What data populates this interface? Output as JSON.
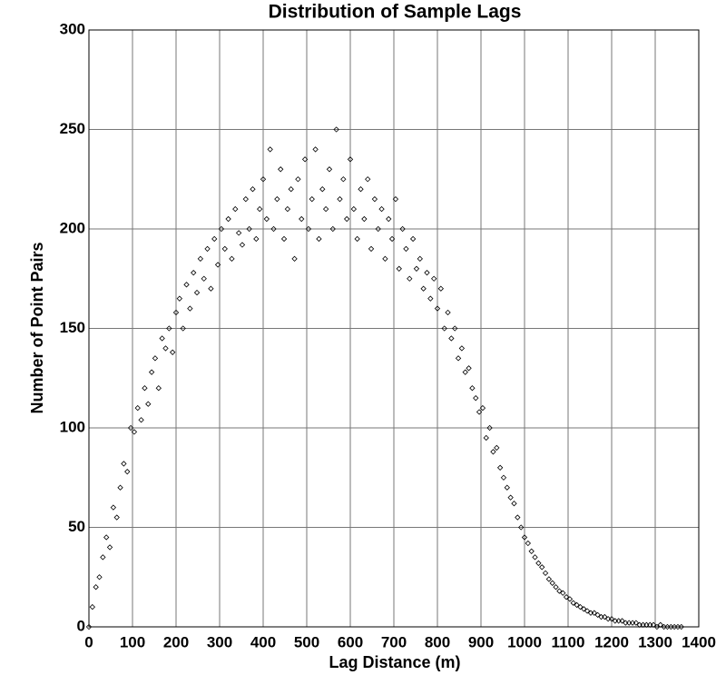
{
  "chart_data": {
    "type": "scatter",
    "title": "Distribution of Sample Lags",
    "xlabel": "Lag Distance (m)",
    "ylabel": "Number of Point Pairs",
    "marker_color": "#000000",
    "grid": true,
    "xlim": [
      0,
      1400
    ],
    "ylim": [
      0,
      300
    ],
    "xticks": [
      0,
      100,
      200,
      300,
      400,
      500,
      600,
      700,
      800,
      900,
      1000,
      1100,
      1200,
      1300,
      1400
    ],
    "yticks": [
      0,
      50,
      100,
      150,
      200,
      250,
      300
    ],
    "x": [
      0,
      8,
      16,
      24,
      32,
      40,
      48,
      56,
      64,
      72,
      80,
      88,
      96,
      104,
      112,
      120,
      128,
      136,
      144,
      152,
      160,
      168,
      176,
      184,
      192,
      200,
      208,
      216,
      224,
      232,
      240,
      248,
      256,
      264,
      272,
      280,
      288,
      296,
      304,
      312,
      320,
      328,
      336,
      344,
      352,
      360,
      368,
      376,
      384,
      392,
      400,
      408,
      416,
      424,
      432,
      440,
      448,
      456,
      464,
      472,
      480,
      488,
      496,
      504,
      512,
      520,
      528,
      536,
      544,
      552,
      560,
      568,
      576,
      584,
      592,
      600,
      608,
      616,
      624,
      632,
      640,
      648,
      656,
      664,
      672,
      680,
      688,
      696,
      704,
      712,
      720,
      728,
      736,
      744,
      752,
      760,
      768,
      776,
      784,
      792,
      800,
      808,
      816,
      824,
      832,
      840,
      848,
      856,
      864,
      872,
      880,
      888,
      896,
      904,
      912,
      920,
      928,
      936,
      944,
      952,
      960,
      968,
      976,
      984,
      992,
      1000,
      1008,
      1016,
      1024,
      1032,
      1040,
      1048,
      1056,
      1064,
      1072,
      1080,
      1088,
      1096,
      1104,
      1112,
      1120,
      1128,
      1136,
      1144,
      1152,
      1160,
      1168,
      1176,
      1184,
      1192,
      1200,
      1208,
      1216,
      1224,
      1232,
      1240,
      1248,
      1256,
      1264,
      1272,
      1280,
      1288,
      1296,
      1304,
      1312,
      1320,
      1328,
      1336,
      1344,
      1352,
      1360
    ],
    "values": [
      0,
      10,
      20,
      25,
      35,
      45,
      40,
      60,
      55,
      70,
      82,
      78,
      100,
      98,
      110,
      104,
      120,
      112,
      128,
      135,
      120,
      145,
      140,
      150,
      138,
      158,
      165,
      150,
      172,
      160,
      178,
      168,
      185,
      175,
      190,
      170,
      195,
      182,
      200,
      190,
      205,
      185,
      210,
      198,
      192,
      215,
      200,
      220,
      195,
      210,
      225,
      205,
      240,
      200,
      215,
      230,
      195,
      210,
      220,
      185,
      225,
      205,
      235,
      200,
      215,
      240,
      195,
      220,
      210,
      230,
      200,
      250,
      215,
      225,
      205,
      235,
      210,
      195,
      220,
      205,
      225,
      190,
      215,
      200,
      210,
      185,
      205,
      195,
      215,
      180,
      200,
      190,
      175,
      195,
      180,
      185,
      170,
      178,
      165,
      175,
      160,
      170,
      150,
      158,
      145,
      150,
      135,
      140,
      128,
      130,
      120,
      115,
      108,
      110,
      95,
      100,
      88,
      90,
      80,
      75,
      70,
      65,
      62,
      55,
      50,
      45,
      42,
      38,
      35,
      32,
      30,
      27,
      24,
      22,
      20,
      18,
      17,
      15,
      14,
      12,
      11,
      10,
      9,
      8,
      7,
      7,
      6,
      5,
      5,
      4,
      4,
      3,
      3,
      3,
      2,
      2,
      2,
      2,
      1,
      1,
      1,
      1,
      1,
      0,
      1,
      0,
      0,
      0,
      0,
      0,
      0
    ]
  }
}
